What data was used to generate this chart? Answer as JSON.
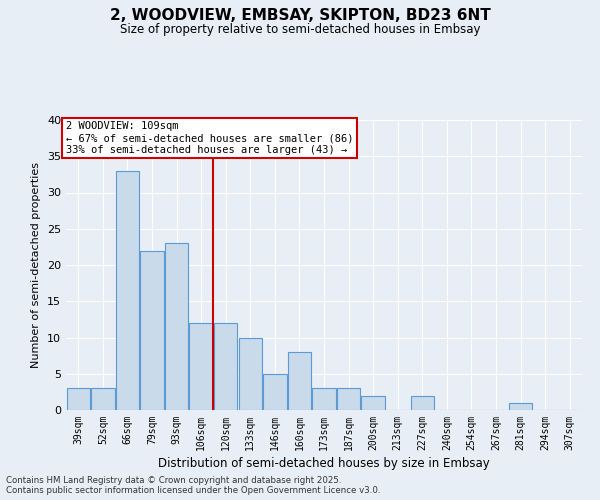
{
  "title_line1": "2, WOODVIEW, EMBSAY, SKIPTON, BD23 6NT",
  "title_line2": "Size of property relative to semi-detached houses in Embsay",
  "xlabel": "Distribution of semi-detached houses by size in Embsay",
  "ylabel": "Number of semi-detached properties",
  "categories": [
    "39sqm",
    "52sqm",
    "66sqm",
    "79sqm",
    "93sqm",
    "106sqm",
    "120sqm",
    "133sqm",
    "146sqm",
    "160sqm",
    "173sqm",
    "187sqm",
    "200sqm",
    "213sqm",
    "227sqm",
    "240sqm",
    "254sqm",
    "267sqm",
    "281sqm",
    "294sqm",
    "307sqm"
  ],
  "values": [
    3,
    3,
    33,
    22,
    23,
    12,
    12,
    10,
    5,
    8,
    3,
    3,
    2,
    0,
    2,
    0,
    0,
    0,
    1,
    0,
    0
  ],
  "bar_color": "#c9daea",
  "bar_edge_color": "#5b9bd5",
  "red_line_x": 5.5,
  "annotation_title": "2 WOODVIEW: 109sqm",
  "annotation_line1": "← 67% of semi-detached houses are smaller (86)",
  "annotation_line2": "33% of semi-detached houses are larger (43) →",
  "annotation_box_color": "#ffffff",
  "annotation_box_edge": "#cc0000",
  "red_line_color": "#cc0000",
  "ylim": [
    0,
    40
  ],
  "yticks": [
    0,
    5,
    10,
    15,
    20,
    25,
    30,
    35,
    40
  ],
  "footer_line1": "Contains HM Land Registry data © Crown copyright and database right 2025.",
  "footer_line2": "Contains public sector information licensed under the Open Government Licence v3.0.",
  "background_color": "#e8eef5",
  "plot_bg_color": "#e8eef5",
  "grid_color": "#ffffff"
}
